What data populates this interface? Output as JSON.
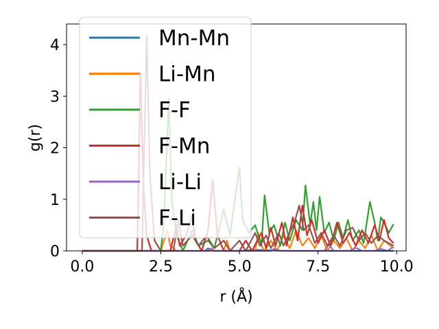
{
  "chart_data": {
    "type": "line",
    "xlabel": "r (Å)",
    "ylabel": "g(r)",
    "xlim": [
      -0.5,
      10.3
    ],
    "ylim": [
      0,
      4.4
    ],
    "xticks": [
      0.0,
      2.5,
      5.0,
      7.5,
      10.0
    ],
    "xtick_labels": [
      "0.0",
      "2.5",
      "5.0",
      "7.5",
      "10.0"
    ],
    "yticks": [
      0,
      1,
      2,
      3,
      4
    ],
    "ytick_labels": [
      "0",
      "1",
      "2",
      "3",
      "4"
    ],
    "grid": false,
    "legend_position": "upper-left",
    "series": [
      {
        "name": "Mn-Mn",
        "color": "#1f77b4",
        "points": [
          [
            0,
            0
          ],
          [
            2.0,
            0
          ],
          [
            3.0,
            0
          ],
          [
            3.9,
            0
          ],
          [
            4.0,
            0.05
          ],
          [
            4.1,
            0
          ],
          [
            5.0,
            0
          ],
          [
            5.5,
            0.02
          ],
          [
            6.5,
            0
          ],
          [
            8.0,
            0
          ],
          [
            9.9,
            0
          ]
        ]
      },
      {
        "name": "Li-Mn",
        "color": "#ff7f0e",
        "points": [
          [
            0,
            0
          ],
          [
            2.5,
            0
          ],
          [
            2.7,
            0.4
          ],
          [
            2.8,
            0.1
          ],
          [
            3.0,
            0
          ],
          [
            4.5,
            0
          ],
          [
            4.6,
            0.2
          ],
          [
            4.7,
            0
          ],
          [
            5.5,
            0
          ],
          [
            5.6,
            0.35
          ],
          [
            5.7,
            0.1
          ],
          [
            5.8,
            0
          ],
          [
            6.0,
            0.2
          ],
          [
            6.2,
            0
          ],
          [
            6.4,
            0.3
          ],
          [
            6.6,
            0.05
          ],
          [
            6.8,
            0.4
          ],
          [
            7.0,
            0.1
          ],
          [
            7.2,
            0.25
          ],
          [
            7.4,
            0.05
          ],
          [
            7.6,
            0.3
          ],
          [
            7.8,
            0
          ],
          [
            8.0,
            0.2
          ],
          [
            8.2,
            0.05
          ],
          [
            8.4,
            0.25
          ],
          [
            8.6,
            0
          ],
          [
            8.8,
            0.2
          ],
          [
            9.0,
            0.05
          ],
          [
            9.2,
            0.3
          ],
          [
            9.4,
            0
          ],
          [
            9.6,
            0.2
          ],
          [
            9.9,
            0.05
          ]
        ]
      },
      {
        "name": "F-F",
        "color": "#2ca02c",
        "points": [
          [
            0,
            0
          ],
          [
            2.5,
            0
          ],
          [
            2.6,
            0.6
          ],
          [
            2.75,
            2.95
          ],
          [
            2.85,
            1.0
          ],
          [
            3.0,
            0.3
          ],
          [
            3.2,
            0
          ],
          [
            3.5,
            0.4
          ],
          [
            3.7,
            0.1
          ],
          [
            4.0,
            0.2
          ],
          [
            4.2,
            0.05
          ],
          [
            4.5,
            0.8
          ],
          [
            4.7,
            0.3
          ],
          [
            5.0,
            1.62
          ],
          [
            5.1,
            0.6
          ],
          [
            5.3,
            0.35
          ],
          [
            5.5,
            0.5
          ],
          [
            5.7,
            0.1
          ],
          [
            5.8,
            1.08
          ],
          [
            5.95,
            0.35
          ],
          [
            6.1,
            0.5
          ],
          [
            6.3,
            0.1
          ],
          [
            6.45,
            0.55
          ],
          [
            6.6,
            0.2
          ],
          [
            6.8,
            0.6
          ],
          [
            7.0,
            0.4
          ],
          [
            7.1,
            1.27
          ],
          [
            7.25,
            0.5
          ],
          [
            7.35,
            0.95
          ],
          [
            7.45,
            0.4
          ],
          [
            7.55,
            1.05
          ],
          [
            7.7,
            0.35
          ],
          [
            7.85,
            0.55
          ],
          [
            8.0,
            0.2
          ],
          [
            8.15,
            0.55
          ],
          [
            8.3,
            0.25
          ],
          [
            8.45,
            0.6
          ],
          [
            8.6,
            0.2
          ],
          [
            8.8,
            0.4
          ],
          [
            8.95,
            0.15
          ],
          [
            9.15,
            0.95
          ],
          [
            9.3,
            0.55
          ],
          [
            9.4,
            0.2
          ],
          [
            9.5,
            0.65
          ],
          [
            9.6,
            0.55
          ],
          [
            9.75,
            0.35
          ],
          [
            9.9,
            0.52
          ]
        ]
      },
      {
        "name": "F-Mn",
        "color": "#d62728",
        "points": [
          [
            0,
            0
          ],
          [
            1.75,
            0
          ],
          [
            1.85,
            3.45
          ],
          [
            1.95,
            1.2
          ],
          [
            2.05,
            0.3
          ],
          [
            2.2,
            0
          ],
          [
            2.8,
            0
          ],
          [
            3.0,
            0.5
          ],
          [
            3.1,
            0.1
          ],
          [
            3.3,
            0.3
          ],
          [
            3.5,
            0.7
          ],
          [
            3.6,
            0.2
          ],
          [
            3.8,
            0
          ],
          [
            4.0,
            0.4
          ],
          [
            4.15,
            1.38
          ],
          [
            4.3,
            0.3
          ],
          [
            4.5,
            0
          ],
          [
            5.0,
            0
          ],
          [
            5.2,
            0.2
          ],
          [
            5.4,
            0
          ],
          [
            5.7,
            0.35
          ],
          [
            5.85,
            0.05
          ],
          [
            6.0,
            0.45
          ],
          [
            6.15,
            0.1
          ],
          [
            6.35,
            0.55
          ],
          [
            6.5,
            0.1
          ],
          [
            6.7,
            0.65
          ],
          [
            6.85,
            0.2
          ],
          [
            7.0,
            0.88
          ],
          [
            7.15,
            0.3
          ],
          [
            7.3,
            0.6
          ],
          [
            7.5,
            0.15
          ],
          [
            7.7,
            0.4
          ],
          [
            7.9,
            0.1
          ],
          [
            8.1,
            0.55
          ],
          [
            8.3,
            0.15
          ],
          [
            8.5,
            0.35
          ],
          [
            8.7,
            0.1
          ],
          [
            8.9,
            0.4
          ],
          [
            9.1,
            0.15
          ],
          [
            9.3,
            0.5
          ],
          [
            9.45,
            0.2
          ],
          [
            9.6,
            0.6
          ],
          [
            9.75,
            0.25
          ],
          [
            9.9,
            0.15
          ]
        ]
      },
      {
        "name": "Li-Li",
        "color": "#9467bd",
        "points": [
          [
            0,
            0
          ],
          [
            4.0,
            0
          ],
          [
            4.1,
            0.05
          ],
          [
            4.2,
            0
          ],
          [
            6.0,
            0
          ],
          [
            6.1,
            0.04
          ],
          [
            6.3,
            0
          ],
          [
            7.7,
            0
          ],
          [
            7.85,
            0.12
          ],
          [
            8.0,
            0
          ],
          [
            8.5,
            0
          ],
          [
            8.7,
            0.06
          ],
          [
            8.9,
            0
          ],
          [
            9.3,
            0
          ],
          [
            9.5,
            0.04
          ],
          [
            9.7,
            0
          ],
          [
            9.9,
            0.08
          ]
        ]
      },
      {
        "name": "F-Li",
        "color": "#8c564b",
        "points": [
          [
            0,
            0
          ],
          [
            1.9,
            0
          ],
          [
            2.05,
            4.18
          ],
          [
            2.15,
            1.5
          ],
          [
            2.3,
            0.2
          ],
          [
            2.5,
            0
          ],
          [
            2.9,
            0
          ],
          [
            3.05,
            0.6
          ],
          [
            3.2,
            0.1
          ],
          [
            3.5,
            0.3
          ],
          [
            3.7,
            0.1
          ],
          [
            3.95,
            0.3
          ],
          [
            4.2,
            0.05
          ],
          [
            4.5,
            0.2
          ],
          [
            4.7,
            0
          ],
          [
            5.0,
            0.2
          ],
          [
            5.2,
            0
          ],
          [
            5.5,
            0.35
          ],
          [
            5.65,
            0.1
          ],
          [
            5.85,
            0.3
          ],
          [
            6.0,
            0.05
          ],
          [
            6.25,
            0.35
          ],
          [
            6.4,
            0.1
          ],
          [
            6.55,
            0.3
          ],
          [
            6.75,
            0.55
          ],
          [
            6.9,
            0.88
          ],
          [
            7.05,
            0.4
          ],
          [
            7.2,
            0.5
          ],
          [
            7.4,
            0.15
          ],
          [
            7.6,
            0.35
          ],
          [
            7.8,
            0.1
          ],
          [
            8.0,
            0.3
          ],
          [
            8.2,
            0.1
          ],
          [
            8.4,
            0.4
          ],
          [
            8.6,
            0.45
          ],
          [
            8.8,
            0.2
          ],
          [
            9.0,
            0.35
          ],
          [
            9.2,
            0.15
          ],
          [
            9.4,
            0.3
          ],
          [
            9.6,
            0.2
          ],
          [
            9.9,
            0.1
          ]
        ]
      }
    ]
  }
}
